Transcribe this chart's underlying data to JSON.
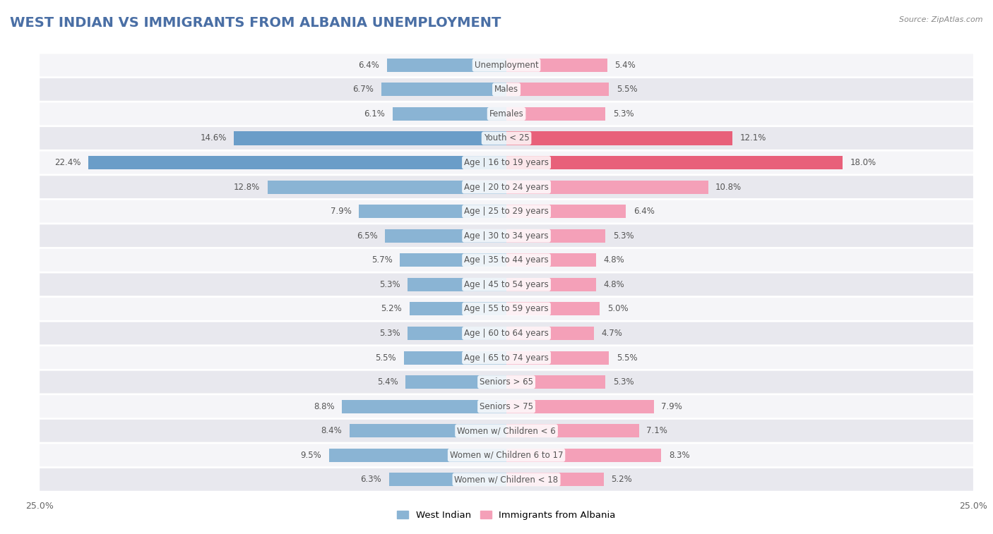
{
  "title": "WEST INDIAN VS IMMIGRANTS FROM ALBANIA UNEMPLOYMENT",
  "source": "Source: ZipAtlas.com",
  "categories": [
    "Unemployment",
    "Males",
    "Females",
    "Youth < 25",
    "Age | 16 to 19 years",
    "Age | 20 to 24 years",
    "Age | 25 to 29 years",
    "Age | 30 to 34 years",
    "Age | 35 to 44 years",
    "Age | 45 to 54 years",
    "Age | 55 to 59 years",
    "Age | 60 to 64 years",
    "Age | 65 to 74 years",
    "Seniors > 65",
    "Seniors > 75",
    "Women w/ Children < 6",
    "Women w/ Children 6 to 17",
    "Women w/ Children < 18"
  ],
  "west_indian": [
    6.4,
    6.7,
    6.1,
    14.6,
    22.4,
    12.8,
    7.9,
    6.5,
    5.7,
    5.3,
    5.2,
    5.3,
    5.5,
    5.4,
    8.8,
    8.4,
    9.5,
    6.3
  ],
  "albania": [
    5.4,
    5.5,
    5.3,
    12.1,
    18.0,
    10.8,
    6.4,
    5.3,
    4.8,
    4.8,
    5.0,
    4.7,
    5.5,
    5.3,
    7.9,
    7.1,
    8.3,
    5.2
  ],
  "west_indian_color": "#8ab4d4",
  "albania_color": "#f4a0b8",
  "west_indian_highlight_color": "#6a9dc8",
  "albania_highlight_color": "#e8607a",
  "axis_limit": 25.0,
  "bar_height": 0.55,
  "bg_color": "#ffffff",
  "row_color_odd": "#e8e8ee",
  "row_color_even": "#f5f5f8",
  "label_box_color": "#ffffff",
  "label_text_color": "#555555",
  "value_text_color": "#555555",
  "legend_label_west": "West Indian",
  "legend_label_albania": "Immigrants from Albania",
  "title_color": "#4a6fa5",
  "title_fontsize": 14,
  "source_fontsize": 8
}
